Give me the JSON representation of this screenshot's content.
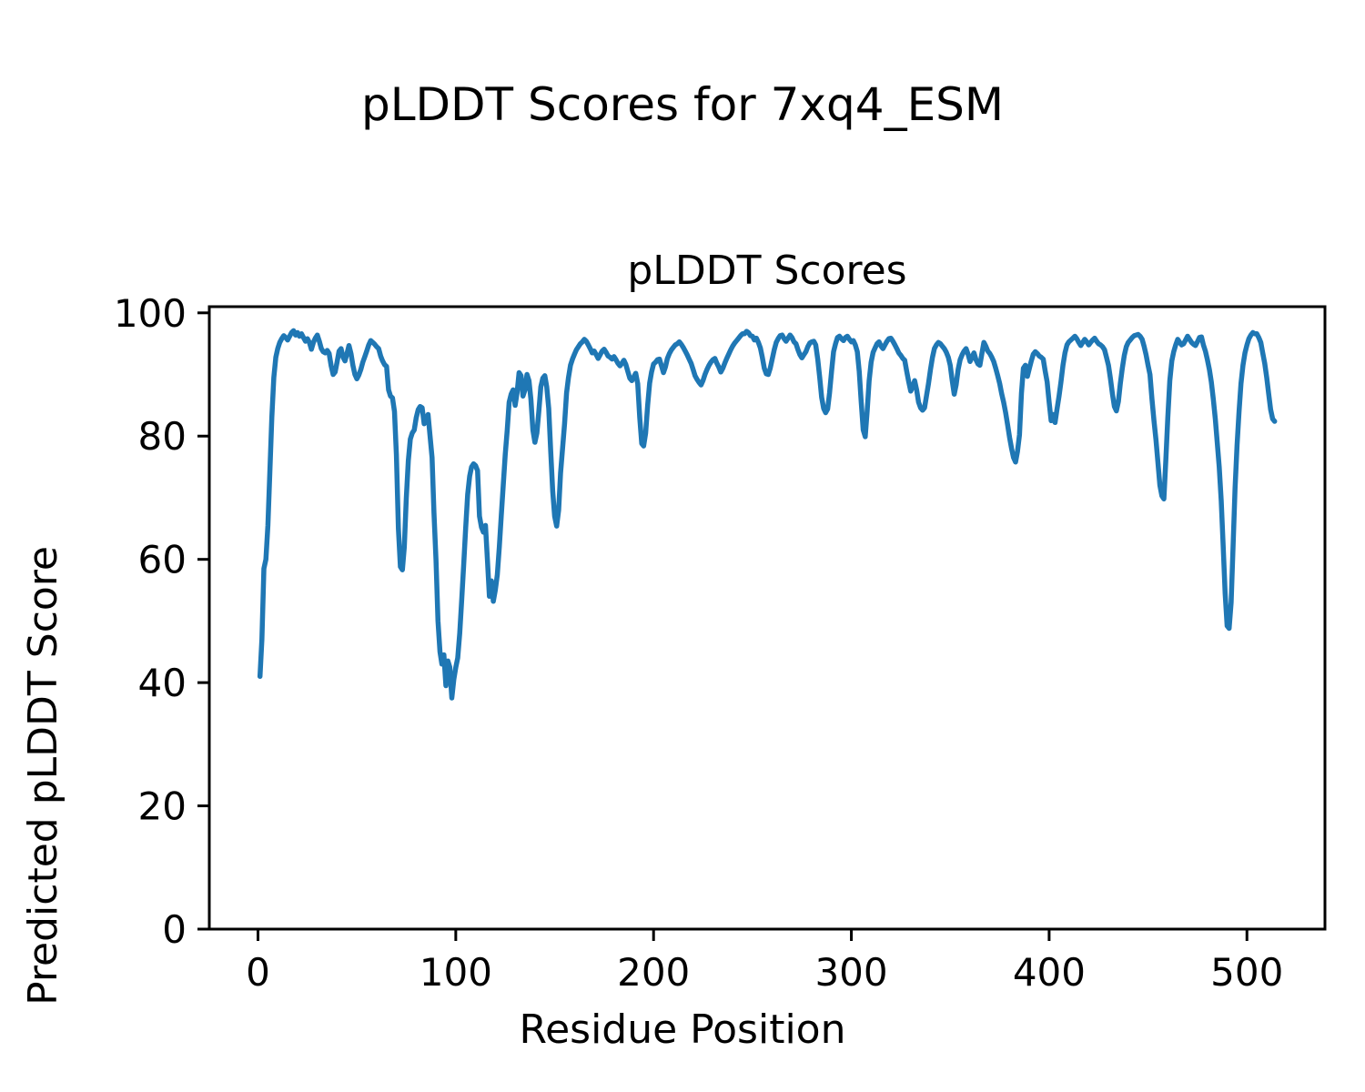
{
  "figure": {
    "suptitle": "pLDDT Scores for 7xq4_ESM",
    "axes_title": "pLDDT Scores",
    "xlabel": "Residue Position",
    "ylabel": "Predicted pLDDT Score"
  },
  "chart_data": {
    "type": "line",
    "title": "pLDDT Scores",
    "suptitle": "pLDDT Scores for 7xq4_ESM",
    "xlabel": "Residue Position",
    "ylabel": "Predicted pLDDT Score",
    "x_ticks": [
      0,
      100,
      200,
      300,
      400,
      500
    ],
    "y_ticks": [
      0,
      20,
      40,
      60,
      80,
      100
    ],
    "xlim": [
      -25,
      540
    ],
    "ylim": [
      0,
      101
    ],
    "grid": false,
    "legend": "none",
    "line_color": "#1f77b4",
    "background_color": "#ffffff",
    "series": [
      {
        "name": "pLDDT",
        "x_start": 1,
        "x_step": 1,
        "values": [
          41,
          47,
          58.5,
          60,
          65.5,
          74,
          83,
          89.5,
          92.8,
          94.2,
          95.2,
          95.8,
          96.3,
          96,
          95.6,
          96.2,
          96.8,
          97.1,
          96.4,
          96.8,
          96.2,
          96.6,
          96,
          95.4,
          95.8,
          95.2,
          94.1,
          95.2,
          95.9,
          96.4,
          95.4,
          94.2,
          93.7,
          93.5,
          93.9,
          93.4,
          91.4,
          90,
          90.4,
          92,
          93.8,
          94.2,
          92.8,
          92.2,
          93.4,
          94.7,
          93.4,
          91.5,
          90,
          89.3,
          89.9,
          90.8,
          92,
          92.9,
          93.8,
          94.8,
          95.5,
          95.2,
          94.9,
          94.5,
          94.2,
          93,
          92.2,
          91.6,
          91.3,
          87.5,
          86.5,
          86.2,
          84,
          77,
          65,
          58.8,
          58.3,
          62,
          70,
          76,
          79.5,
          80.5,
          81,
          83,
          84.3,
          84.8,
          84.6,
          82,
          82.6,
          83.5,
          80,
          76.5,
          67.5,
          60,
          50,
          45,
          43,
          44.5,
          39.5,
          43.5,
          42.5,
          37.5,
          40.5,
          42.5,
          44,
          48,
          53.5,
          59,
          65,
          70.5,
          73.5,
          75,
          75.5,
          75.2,
          74.4,
          67,
          65.2,
          64.4,
          65.5,
          60,
          54,
          56.5,
          53.2,
          55,
          57.5,
          62,
          67,
          72,
          77,
          81,
          85.5,
          86.8,
          87.5,
          85,
          87,
          90.3,
          89.8,
          86.5,
          87.5,
          90,
          89,
          86,
          81,
          79,
          80.5,
          84,
          88,
          89.4,
          89.8,
          88,
          84.5,
          77.5,
          71,
          67,
          65.4,
          68,
          74,
          78,
          82,
          87,
          89.5,
          91.5,
          92.5,
          93.3,
          94,
          94.5,
          95,
          95.3,
          95.7,
          95.4,
          94.8,
          94.2,
          93.5,
          93.8,
          93.2,
          92.6,
          93.2,
          93.8,
          94.1,
          93.6,
          93,
          92.8,
          92.5,
          92.9,
          92.4,
          91.8,
          91.4,
          91.8,
          92.3,
          91.6,
          90.5,
          89.4,
          89,
          89.6,
          90.2,
          88.5,
          83,
          78.8,
          78.4,
          80.5,
          85,
          88.6,
          90.4,
          91.7,
          92,
          92.4,
          92.5,
          91.4,
          90.3,
          91.2,
          92.6,
          93.4,
          94,
          94.4,
          94.8,
          95,
          95.3,
          94.9,
          94.4,
          93.8,
          93.2,
          92.5,
          91.8,
          90.8,
          89.8,
          89.2,
          88.7,
          88.3,
          89,
          90,
          90.8,
          91.5,
          92,
          92.4,
          92.6,
          91.8,
          91.2,
          90.4,
          91,
          91.8,
          92.6,
          93.3,
          94,
          94.6,
          95.1,
          95.5,
          95.9,
          96.3,
          96.6,
          96.6,
          97,
          96.8,
          96.3,
          96.2,
          95.6,
          95.9,
          95.2,
          94.3,
          92.8,
          91,
          90.1,
          90,
          91,
          92.5,
          94,
          95.2,
          95.8,
          96.3,
          96.4,
          95.8,
          95.4,
          95.9,
          96.4,
          96,
          95.3,
          95,
          94,
          93.2,
          92.7,
          93.2,
          93.7,
          94.5,
          95.1,
          95.3,
          95.4,
          94.8,
          92.5,
          89.5,
          86.3,
          84.5,
          83.8,
          84.4,
          87,
          90.5,
          93.7,
          95,
          96,
          96.2,
          95.8,
          95.5,
          96,
          96.2,
          95.7,
          95.3,
          95.5,
          94.8,
          93.7,
          90.5,
          85.5,
          81,
          79.9,
          84,
          89,
          92,
          93.6,
          94.3,
          95,
          95.3,
          94.6,
          94.2,
          94.8,
          95.4,
          95.8,
          95.9,
          95.4,
          94.8,
          94.2,
          93.5,
          93.1,
          92.6,
          92.3,
          90.5,
          88.8,
          87.3,
          88,
          89,
          87.5,
          85.5,
          84.6,
          84.2,
          84.6,
          86.5,
          88.5,
          90.8,
          92.8,
          94.2,
          94.8,
          95.2,
          95,
          94.6,
          94.2,
          93.6,
          92.8,
          91.5,
          89,
          86.8,
          88.3,
          90.8,
          92.4,
          93.2,
          93.8,
          94.2,
          93.3,
          92.1,
          92.8,
          93.5,
          92.4,
          91.7,
          91.5,
          93.4,
          95.2,
          94.6,
          93.8,
          93.4,
          92.8,
          92.1,
          91,
          89.8,
          88.5,
          86.9,
          85.5,
          83.8,
          81.8,
          79.8,
          78,
          76.5,
          75.8,
          77.5,
          80.2,
          87,
          91,
          91.5,
          89.7,
          91,
          92.2,
          93.3,
          93.7,
          93.4,
          93,
          92.8,
          92.5,
          90.5,
          88.8,
          85.5,
          82.5,
          83.5,
          82.2,
          84.4,
          86.5,
          88.8,
          91.5,
          93.5,
          94.8,
          95.3,
          95.6,
          95.9,
          96.2,
          95.8,
          95.2,
          94.7,
          95.2,
          95.7,
          95.3,
          94.8,
          95.2,
          95.6,
          95.9,
          95.4,
          95,
          94.8,
          94.5,
          94,
          92.8,
          91.5,
          89.3,
          86.8,
          84.8,
          84.1,
          85.6,
          88.5,
          91,
          93.1,
          94.5,
          95.2,
          95.6,
          96,
          96.3,
          96.4,
          96.5,
          96.2,
          95.7,
          94.6,
          93.2,
          91.5,
          90,
          86,
          82.5,
          79.4,
          75.8,
          72,
          70.3,
          69.8,
          76,
          83,
          89,
          92.2,
          93.7,
          94.8,
          95.7,
          95.2,
          94.8,
          95,
          95.6,
          96.2,
          95.7,
          95.2,
          94.9,
          94.7,
          95.3,
          96,
          96.1,
          94.8,
          93.8,
          92.4,
          90.8,
          88.8,
          86,
          82.8,
          79,
          75,
          69.5,
          62,
          54.5,
          49.2,
          48.8,
          53,
          62,
          71.5,
          78.5,
          84,
          88.5,
          91.5,
          93.5,
          94.8,
          95.8,
          96.4,
          96.8,
          96.6,
          96.6,
          96,
          95.2,
          93.5,
          91.8,
          89.5,
          86.8,
          84.3,
          82.8,
          82.4
        ]
      }
    ]
  }
}
